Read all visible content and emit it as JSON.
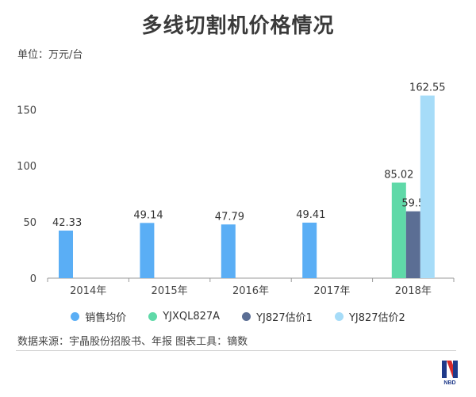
{
  "title": "多线切割机价格情况",
  "unit_label": "单位：万元/台",
  "source_text": "数据来源：宇晶股份招股书、年报 图表工具：镝数",
  "logo": {
    "icon": "nbd-logo-icon",
    "text": "NBD"
  },
  "chart_data": {
    "type": "bar",
    "categories": [
      "2014年",
      "2015年",
      "2016年",
      "2017年",
      "2018年"
    ],
    "ylim": [
      0,
      170
    ],
    "yticks": [
      0,
      50,
      100,
      150
    ],
    "legend_position": "bottom",
    "grid": false,
    "series": [
      {
        "name": "销售均价",
        "color": "#5aaef5",
        "values": [
          42.33,
          49.14,
          47.79,
          49.41,
          null
        ],
        "labels": [
          "42.33",
          "49.14",
          "47.79",
          "49.41",
          ""
        ]
      },
      {
        "name": "YJXQL827A",
        "color": "#5fd9a8",
        "values": [
          null,
          null,
          null,
          null,
          85.02
        ],
        "labels": [
          "",
          "",
          "",
          "",
          "85.02"
        ]
      },
      {
        "name": "YJ827估价1",
        "color": "#5b6e94",
        "values": [
          null,
          null,
          null,
          null,
          59.5
        ],
        "labels": [
          "",
          "",
          "",
          "",
          "59.5"
        ]
      },
      {
        "name": "YJ827估价2",
        "color": "#a6dcf8",
        "values": [
          null,
          null,
          null,
          null,
          162.55
        ],
        "labels": [
          "",
          "",
          "",
          "",
          "162.55"
        ]
      }
    ]
  }
}
